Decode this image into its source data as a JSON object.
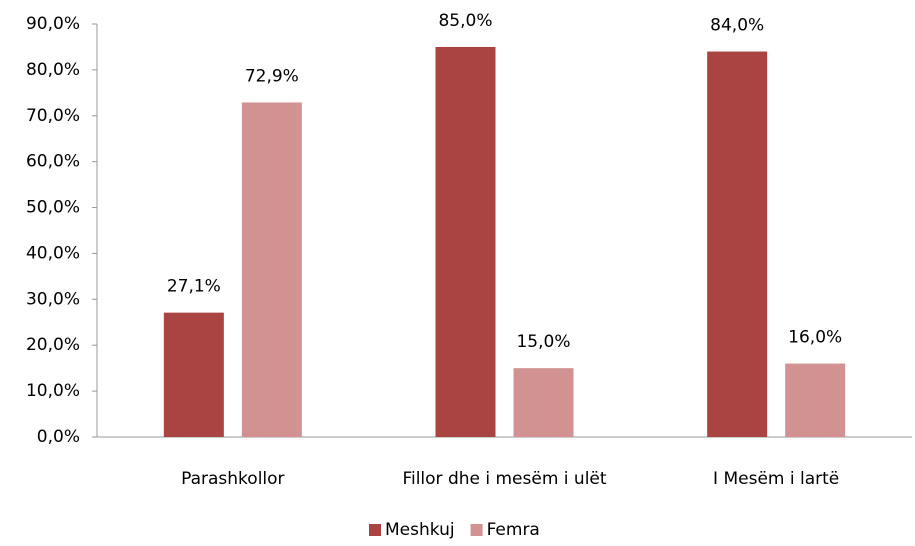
{
  "chart_data": {
    "type": "bar",
    "categories": [
      "Parashkollor",
      "Fillor dhe i mesëm i ulët",
      "I Mesëm i lartë"
    ],
    "series": [
      {
        "name": "Meshkuj",
        "color": "#a94442",
        "values": [
          27.1,
          85.0,
          84.0
        ],
        "value_labels": [
          "27,1%",
          "85,0%",
          "84,0%"
        ]
      },
      {
        "name": "Femra",
        "color": "#d39292",
        "values": [
          72.9,
          15.0,
          16.0
        ],
        "value_labels": [
          "72,9%",
          "15,0%",
          "16,0%"
        ]
      }
    ],
    "ylim": [
      0,
      90
    ],
    "yticks": [
      {
        "value": 0,
        "label": "0,0%"
      },
      {
        "value": 10,
        "label": "10,0%"
      },
      {
        "value": 20,
        "label": "20,0%"
      },
      {
        "value": 30,
        "label": "30,0%"
      },
      {
        "value": 40,
        "label": "40,0%"
      },
      {
        "value": 50,
        "label": "50,0%"
      },
      {
        "value": 60,
        "label": "60,0%"
      },
      {
        "value": 70,
        "label": "70,0%"
      },
      {
        "value": 80,
        "label": "80,0%"
      },
      {
        "value": 90,
        "label": "90,0%"
      }
    ],
    "grid": false,
    "legend": "bottom"
  }
}
